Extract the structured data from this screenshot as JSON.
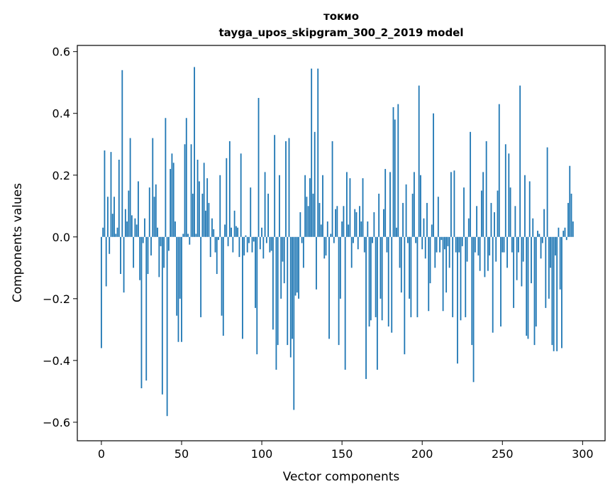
{
  "chart_data": {
    "type": "bar",
    "title": "токио",
    "subtitle": "tayga_upos_skipgram_300_2_2019 model",
    "xlabel": "Vector components",
    "ylabel": "Components values",
    "xlim": [
      -15,
      314
    ],
    "ylim": [
      -0.66,
      0.62
    ],
    "xticks": [
      0,
      50,
      100,
      150,
      200,
      250,
      300
    ],
    "xtick_labels": [
      "0",
      "50",
      "100",
      "150",
      "200",
      "250",
      "300"
    ],
    "yticks": [
      -0.6,
      -0.4,
      -0.2,
      0.0,
      0.2,
      0.4,
      0.6
    ],
    "ytick_labels": [
      "−0.6",
      "−0.4",
      "−0.2",
      "0.0",
      "0.2",
      "0.4",
      "0.6"
    ],
    "grid": false,
    "bar_color": "#1f77b4",
    "series": [
      {
        "values": [
          -0.36,
          0.03,
          0.28,
          -0.16,
          0.13,
          -0.055,
          0.275,
          0.075,
          0.13,
          0.01,
          0.03,
          0.25,
          -0.12,
          0.54,
          -0.18,
          0.09,
          0.05,
          0.15,
          0.32,
          0.07,
          -0.1,
          0.06,
          0.04,
          0.18,
          -0.14,
          -0.49,
          -0.02,
          0.06,
          -0.465,
          -0.12,
          0.16,
          -0.06,
          0.32,
          0.13,
          0.17,
          0.03,
          -0.13,
          -0.03,
          -0.51,
          -0.1,
          0.385,
          -0.58,
          -0.045,
          0.22,
          0.27,
          0.24,
          0.05,
          -0.255,
          -0.34,
          -0.2,
          -0.34,
          0.01,
          0.3,
          0.385,
          0.01,
          -0.025,
          0.3,
          0.14,
          0.55,
          0.01,
          0.25,
          0.18,
          -0.26,
          0.14,
          0.24,
          0.085,
          0.19,
          0.11,
          -0.065,
          0.06,
          0.025,
          -0.05,
          -0.12,
          -0.01,
          0.2,
          -0.255,
          -0.32,
          0.04,
          0.255,
          -0.03,
          0.31,
          0.03,
          -0.05,
          0.085,
          0.035,
          0.03,
          -0.065,
          0.27,
          -0.33,
          -0.06,
          0.005,
          -0.05,
          -0.02,
          0.16,
          -0.05,
          -0.015,
          -0.23,
          -0.38,
          0.45,
          -0.04,
          0.03,
          -0.07,
          0.21,
          -0.02,
          0.14,
          -0.05,
          -0.045,
          -0.3,
          0.33,
          -0.43,
          -0.35,
          0.2,
          -0.2,
          -0.08,
          -0.15,
          0.31,
          -0.35,
          0.32,
          -0.39,
          -0.33,
          -0.56,
          -0.19,
          -0.18,
          -0.2,
          0.08,
          -0.02,
          -0.1,
          0.2,
          0.13,
          0.1,
          0.19,
          0.545,
          0.14,
          0.34,
          -0.17,
          0.545,
          0.11,
          0.04,
          0.2,
          -0.07,
          -0.06,
          0.05,
          -0.33,
          0.01,
          0.31,
          -0.02,
          0.09,
          0.1,
          -0.35,
          -0.2,
          0.05,
          0.1,
          -0.43,
          0.21,
          0.04,
          0.19,
          -0.1,
          -0.02,
          0.09,
          0.08,
          -0.04,
          0.1,
          0.05,
          0.19,
          -0.05,
          -0.46,
          0.05,
          -0.29,
          -0.27,
          -0.02,
          0.08,
          -0.26,
          -0.43,
          0.14,
          -0.2,
          -0.27,
          0.09,
          0.22,
          -0.05,
          -0.29,
          0.21,
          -0.31,
          0.42,
          0.38,
          0.03,
          0.43,
          -0.1,
          -0.18,
          0.11,
          -0.38,
          0.17,
          -0.02,
          -0.2,
          -0.26,
          0.14,
          0.21,
          -0.02,
          -0.26,
          0.49,
          0.2,
          -0.04,
          0.06,
          -0.07,
          0.11,
          -0.24,
          -0.15,
          0.04,
          0.4,
          -0.1,
          -0.05,
          0.13,
          -0.05,
          -0.01,
          -0.24,
          -0.04,
          -0.18,
          -0.03,
          -0.1,
          0.21,
          -0.26,
          0.215,
          -0.05,
          -0.41,
          -0.05,
          -0.27,
          -0.03,
          0.16,
          -0.26,
          -0.08,
          0.06,
          0.34,
          -0.35,
          -0.47,
          -0.05,
          0.1,
          -0.06,
          -0.11,
          0.15,
          0.21,
          -0.13,
          0.31,
          -0.11,
          -0.06,
          0.11,
          -0.31,
          0.08,
          -0.08,
          0.15,
          0.43,
          -0.29,
          -0.05,
          -0.05,
          0.3,
          -0.1,
          0.27,
          0.16,
          -0.05,
          -0.23,
          0.1,
          -0.14,
          -0.05,
          0.49,
          -0.16,
          -0.08,
          0.2,
          -0.32,
          -0.33,
          0.18,
          -0.15,
          0.06,
          -0.35,
          -0.29,
          0.02,
          0.01,
          -0.07,
          -0.02,
          0.09,
          -0.23,
          0.29,
          -0.2,
          -0.1,
          -0.35,
          -0.37,
          -0.06,
          -0.37,
          0.03,
          -0.17,
          -0.36,
          0.02,
          0.03,
          -0.01,
          0.11,
          0.23,
          0.14,
          0.05
        ]
      }
    ]
  }
}
